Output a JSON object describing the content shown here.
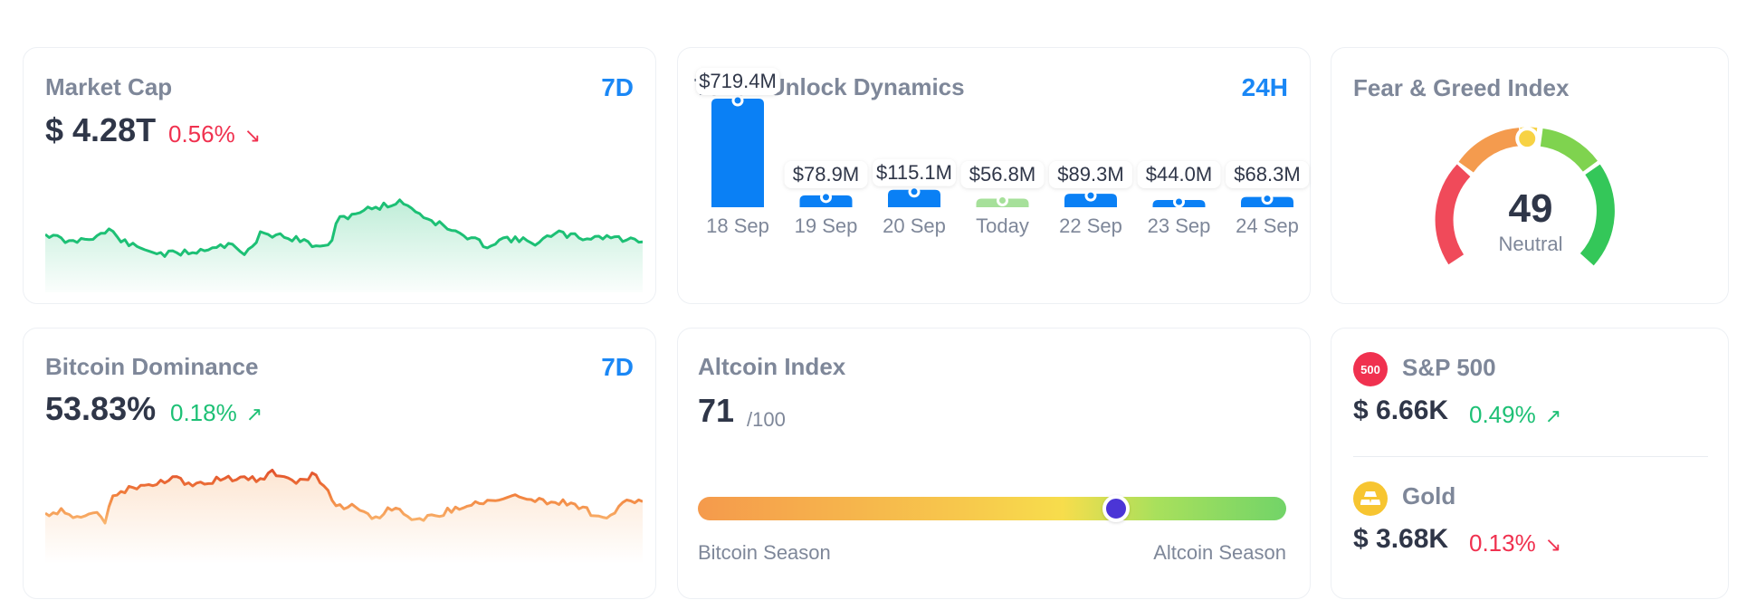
{
  "market_cap": {
    "title": "Market Cap",
    "period": "7D",
    "value": "$ 4.28T",
    "change": "0.56%",
    "direction": "down",
    "color": "#1dc075"
  },
  "token_unlock": {
    "title": "Token Unlock Dynamics",
    "period": "24H",
    "bars": [
      {
        "date": "18 Sep",
        "label": "$719.4M",
        "value": 719.4,
        "today": false
      },
      {
        "date": "19 Sep",
        "label": "$78.9M",
        "value": 78.9,
        "today": false
      },
      {
        "date": "20 Sep",
        "label": "$115.1M",
        "value": 115.1,
        "today": false
      },
      {
        "date": "Today",
        "label": "$56.8M",
        "value": 56.8,
        "today": true
      },
      {
        "date": "22 Sep",
        "label": "$89.3M",
        "value": 89.3,
        "today": false
      },
      {
        "date": "23 Sep",
        "label": "$44.0M",
        "value": 44.0,
        "today": false
      },
      {
        "date": "24 Sep",
        "label": "$68.3M",
        "value": 68.3,
        "today": false
      }
    ],
    "bar_color": "#0a80f5",
    "today_color": "#a6e09a"
  },
  "fear_greed": {
    "title": "Fear & Greed Index",
    "value": "49",
    "label": "Neutral",
    "score": 49
  },
  "btc_dominance": {
    "title": "Bitcoin Dominance",
    "period": "7D",
    "value": "53.83%",
    "change": "0.18%",
    "direction": "up",
    "color": "#f59a4c"
  },
  "altcoin_index": {
    "title": "Altcoin Index",
    "value": "71",
    "suffix": "/100",
    "score": 71,
    "left_label": "Bitcoin Season",
    "right_label": "Altcoin Season"
  },
  "markets": [
    {
      "name": "S&P 500",
      "logo": "500",
      "logo_color": "#f0314f",
      "value": "$ 6.66K",
      "change": "0.49%",
      "direction": "up"
    },
    {
      "name": "Gold",
      "logo": "",
      "logo_color": "#f7c531",
      "value": "$ 3.68K",
      "change": "0.13%",
      "direction": "down"
    }
  ]
}
